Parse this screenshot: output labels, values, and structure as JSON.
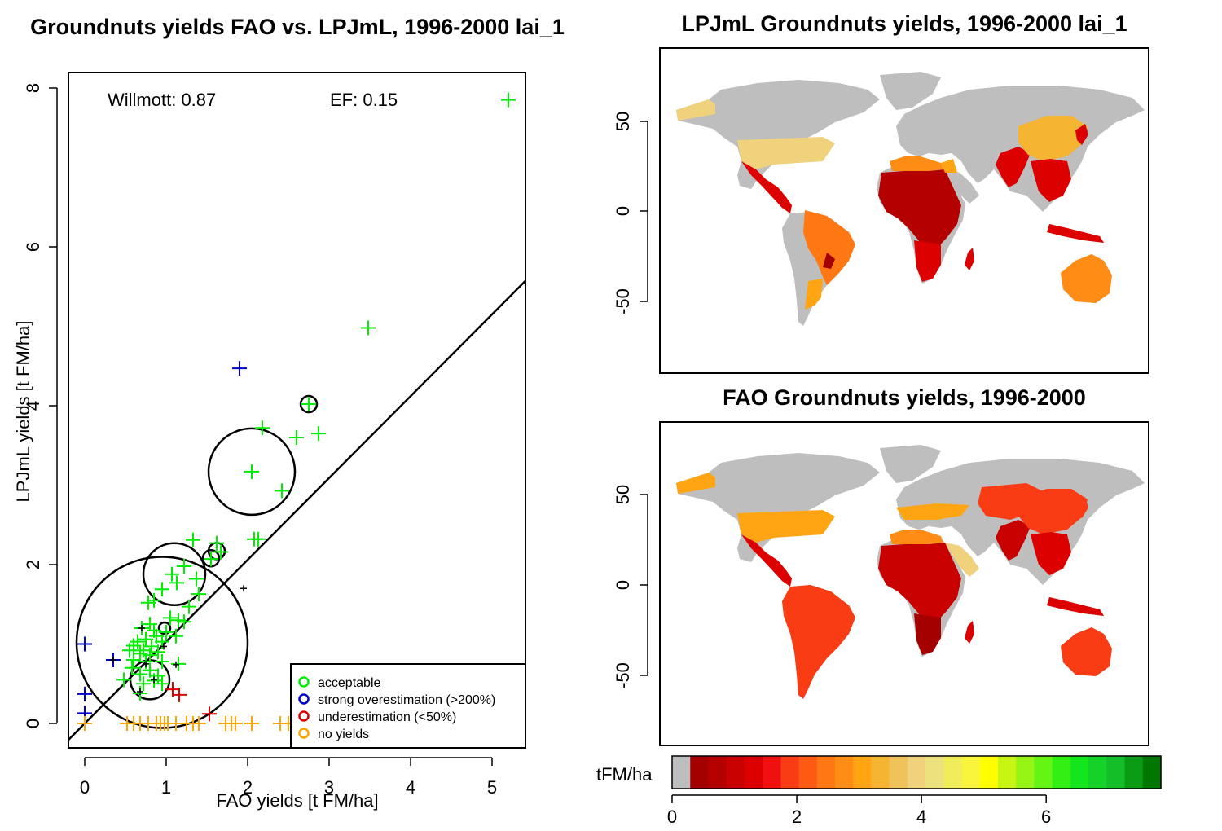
{
  "scatter_title": "Groundnuts yields FAO vs. LPJmL, 1996-2000 lai_1",
  "map_top_title": "LPJmL Groundnuts yields, 1996-2000 lai_1",
  "map_bottom_title": "FAO Groundnuts yields, 1996-2000",
  "colorbar": {
    "label": "tFM/ha",
    "ticks": [
      "0",
      "2",
      "4",
      "6"
    ],
    "colors": [
      "#bebebe",
      "#a50000",
      "#b50000",
      "#c80000",
      "#dc0000",
      "#f01010",
      "#fa3c14",
      "#ff5a14",
      "#ff7814",
      "#ff8c14",
      "#ffa514",
      "#f5b432",
      "#f0c35a",
      "#f0d27d",
      "#ece17d",
      "#f0ec5a",
      "#f8f53c",
      "#ffff00",
      "#c8f514",
      "#96f514",
      "#64f514",
      "#32f014",
      "#14e61e",
      "#14d228",
      "#14be28",
      "#0a9b14",
      "#007800"
    ]
  },
  "map_axis_ticks": [
    "50",
    "0",
    "-50"
  ],
  "chart_data": [
    {
      "type": "scatter",
      "title": "Groundnuts yields FAO vs. LPJmL, 1996-2000 lai_1",
      "xlabel": "FAO yields [t FM/ha]",
      "ylabel": "LPJmL yields [t FM/ha]",
      "xlim": [
        -0.2,
        5.4
      ],
      "ylim": [
        -0.3,
        8.2
      ],
      "xticks": [
        "0",
        "1",
        "2",
        "3",
        "4",
        "5"
      ],
      "yticks": [
        "0",
        "2",
        "4",
        "6",
        "8"
      ],
      "annotations": [
        "Willmott: 0.87",
        "EF: 0.15"
      ],
      "legend_position": "bottom-right",
      "legend": [
        {
          "label": "acceptable",
          "color": "#00ee00"
        },
        {
          "label": "strong overestimation (>200%)",
          "color": "#0000cd"
        },
        {
          "label": "underestimation (<50%)",
          "color": "#dd0000"
        },
        {
          "label": "no yields",
          "color": "#ffa500"
        }
      ],
      "regression_line": {
        "intercept": 0.0,
        "slope": 1.03
      },
      "series": [
        {
          "name": "acceptable",
          "color": "#00ee00",
          "points": [
            [
              5.2,
              7.85
            ],
            [
              3.48,
              4.98
            ],
            [
              2.75,
              4.02
            ],
            [
              2.18,
              3.72
            ],
            [
              2.6,
              3.6
            ],
            [
              2.87,
              3.65
            ],
            [
              2.05,
              3.17
            ],
            [
              2.42,
              2.93
            ],
            [
              1.33,
              2.31
            ],
            [
              2.08,
              2.32
            ],
            [
              2.13,
              2.32
            ],
            [
              1.62,
              2.27
            ],
            [
              1.67,
              2.16
            ],
            [
              1.55,
              2.07
            ],
            [
              1.22,
              1.98
            ],
            [
              1.07,
              1.88
            ],
            [
              1.37,
              1.82
            ],
            [
              1.13,
              1.77
            ],
            [
              0.95,
              1.69
            ],
            [
              1.4,
              1.63
            ],
            [
              0.85,
              1.55
            ],
            [
              0.78,
              1.52
            ],
            [
              1.28,
              1.47
            ],
            [
              1.05,
              1.33
            ],
            [
              1.15,
              1.3
            ],
            [
              1.22,
              1.28
            ],
            [
              0.8,
              1.25
            ],
            [
              0.7,
              1.2
            ],
            [
              0.85,
              1.17
            ],
            [
              1.0,
              1.15
            ],
            [
              0.88,
              1.1
            ],
            [
              1.12,
              1.1
            ],
            [
              0.75,
              1.06
            ],
            [
              0.65,
              1.03
            ],
            [
              0.95,
              1.03
            ],
            [
              0.6,
              0.98
            ],
            [
              0.82,
              0.97
            ],
            [
              0.55,
              0.92
            ],
            [
              0.72,
              0.92
            ],
            [
              0.9,
              0.9
            ],
            [
              0.68,
              0.88
            ],
            [
              0.8,
              0.86
            ],
            [
              0.6,
              0.8
            ],
            [
              0.75,
              0.78
            ],
            [
              0.95,
              0.78
            ],
            [
              1.15,
              0.75
            ],
            [
              0.58,
              0.7
            ],
            [
              0.8,
              0.67
            ],
            [
              0.68,
              0.62
            ],
            [
              0.9,
              0.6
            ],
            [
              0.48,
              0.55
            ],
            [
              0.85,
              0.54
            ],
            [
              0.72,
              0.5
            ],
            [
              0.95,
              0.5
            ],
            [
              0.68,
              0.38
            ]
          ]
        },
        {
          "name": "strong overestimation (>200%)",
          "color": "#0000cd",
          "points": [
            [
              1.9,
              4.47
            ],
            [
              0.0,
              1.0
            ],
            [
              0.35,
              0.8
            ],
            [
              0.0,
              0.37
            ],
            [
              0.0,
              0.13
            ]
          ]
        },
        {
          "name": "underestimation (<50%)",
          "color": "#dd0000",
          "points": [
            [
              1.08,
              0.43
            ],
            [
              1.16,
              0.36
            ],
            [
              1.53,
              0.12
            ]
          ]
        },
        {
          "name": "no yields",
          "color": "#ffa500",
          "points": [
            [
              0.0,
              0.0
            ],
            [
              0.52,
              0.0
            ],
            [
              0.6,
              0.0
            ],
            [
              0.68,
              0.0
            ],
            [
              0.78,
              0.0
            ],
            [
              0.88,
              0.0
            ],
            [
              0.93,
              0.0
            ],
            [
              0.98,
              0.0
            ],
            [
              1.02,
              0.0
            ],
            [
              1.12,
              0.0
            ],
            [
              1.25,
              0.0
            ],
            [
              1.33,
              0.0
            ],
            [
              1.4,
              0.0
            ],
            [
              1.73,
              0.0
            ],
            [
              1.8,
              0.0
            ],
            [
              1.85,
              0.0
            ],
            [
              2.05,
              0.0
            ],
            [
              2.4,
              0.0
            ],
            [
              2.5,
              0.0
            ],
            [
              2.55,
              0.0
            ]
          ]
        }
      ],
      "circles": [
        [
          0.95,
          1.02,
          1.05
        ],
        [
          2.05,
          3.17,
          0.53
        ],
        [
          1.1,
          1.88,
          0.38
        ],
        [
          0.8,
          0.55,
          0.24
        ],
        [
          2.75,
          4.02,
          0.1
        ],
        [
          1.62,
          2.17,
          0.1
        ],
        [
          1.55,
          2.08,
          0.1
        ],
        [
          0.98,
          1.2,
          0.07
        ]
      ],
      "small_markers": [
        [
          0.35,
          0.8
        ],
        [
          0.7,
          1.2
        ],
        [
          0.75,
          0.75
        ],
        [
          0.85,
          0.55
        ],
        [
          1.12,
          0.74
        ],
        [
          0.97,
          0.97
        ],
        [
          1.95,
          1.7
        ],
        [
          0.68,
          0.4
        ]
      ]
    },
    {
      "type": "heatmap",
      "title": "LPJmL Groundnuts yields, 1996-2000 lai_1",
      "ylabel_ticks": [
        "50",
        "0",
        "-50"
      ],
      "value_scale": "tFM/ha",
      "regions": [
        {
          "region": "Canada/Alaska",
          "value": 4.2
        },
        {
          "region": "United States",
          "value": 4.1
        },
        {
          "region": "Mexico / Central America",
          "value": 0.6
        },
        {
          "region": "Brazil / northern South America",
          "value": 1.9
        },
        {
          "region": "Argentina",
          "value": 2.2
        },
        {
          "region": "West & Central Africa",
          "value": 0.5
        },
        {
          "region": "North Africa",
          "value": 1.9
        },
        {
          "region": "Southern Africa",
          "value": 1.0
        },
        {
          "region": "India / South Asia",
          "value": 0.6
        },
        {
          "region": "China",
          "value": 3.4
        },
        {
          "region": "Southeast Asia",
          "value": 0.7
        },
        {
          "region": "Australia",
          "value": 1.9
        }
      ]
    },
    {
      "type": "heatmap",
      "title": "FAO Groundnuts yields, 1996-2000",
      "ylabel_ticks": [
        "50",
        "0",
        "-50"
      ],
      "value_scale": "tFM/ha",
      "regions": [
        {
          "region": "Canada/Alaska",
          "value": 2.6
        },
        {
          "region": "United States",
          "value": 2.8
        },
        {
          "region": "Mexico / Central America",
          "value": 1.0
        },
        {
          "region": "South America",
          "value": 1.3
        },
        {
          "region": "West & Central Africa",
          "value": 0.5
        },
        {
          "region": "North Africa",
          "value": 2.5
        },
        {
          "region": "Southern Africa",
          "value": 0.4
        },
        {
          "region": "Arabia",
          "value": 4.0
        },
        {
          "region": "India / South Asia",
          "value": 0.7
        },
        {
          "region": "China",
          "value": 1.8
        },
        {
          "region": "Russia / Central Asia",
          "value": 1.6
        },
        {
          "region": "Southeast Asia",
          "value": 1.0
        },
        {
          "region": "Australia",
          "value": 1.5
        }
      ]
    }
  ]
}
